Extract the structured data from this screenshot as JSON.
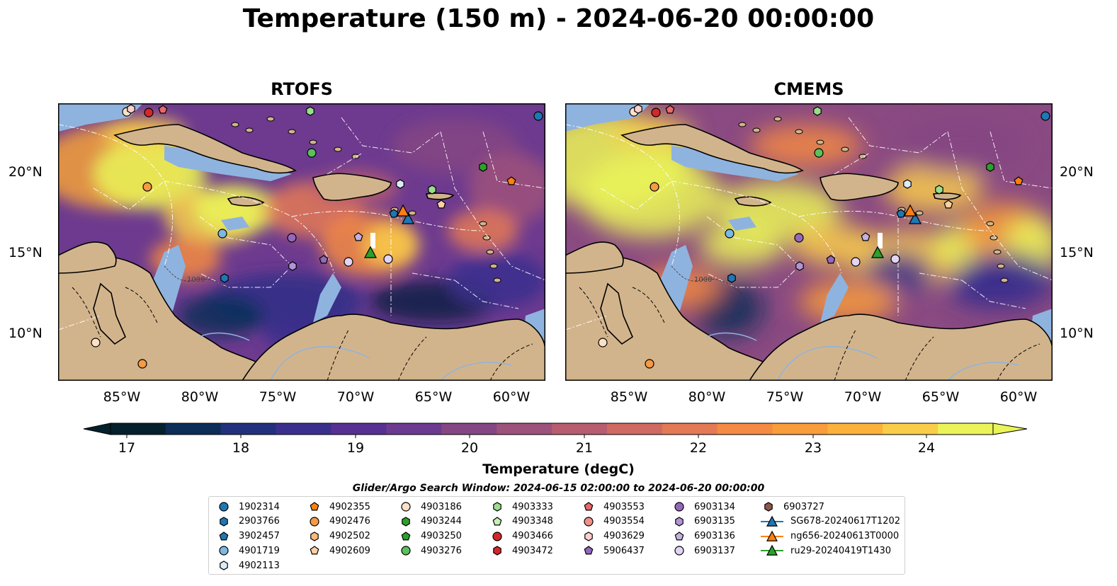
{
  "title": "Temperature (150 m) - 2024-06-20 00:00:00",
  "panels": [
    {
      "title": "RTOFS"
    },
    {
      "title": "CMEMS"
    }
  ],
  "map_axes": {
    "lon_ticks": [
      "85°W",
      "80°W",
      "75°W",
      "70°W",
      "65°W",
      "60°W"
    ],
    "lat_ticks": [
      "20°N",
      "15°N",
      "10°N"
    ],
    "contour_label": "1000"
  },
  "colorbar": {
    "label": "Temperature (degC)",
    "ticks": [
      "17",
      "18",
      "19",
      "20",
      "21",
      "22",
      "23",
      "24"
    ],
    "colors": [
      "#04202c",
      "#0c2d58",
      "#22317d",
      "#3b2f8e",
      "#563092",
      "#6c3a90",
      "#844783",
      "#9d527b",
      "#b75d6f",
      "#ce6a62",
      "#e47956",
      "#f58a43",
      "#f99c3a",
      "#fbb13c",
      "#f9cd4a",
      "#eaf458"
    ]
  },
  "legend": {
    "title": "Glider/Argo Search Window: 2024-06-15 02:00:00 to 2024-06-20 00:00:00",
    "items": [
      {
        "label": "1902314",
        "marker": "circle",
        "color": "#1f77b4"
      },
      {
        "label": "2903766",
        "marker": "hexagon",
        "color": "#1f77b4"
      },
      {
        "label": "3902457",
        "marker": "pentagon",
        "color": "#1f77b4"
      },
      {
        "label": "4901719",
        "marker": "circle",
        "color": "#7db8e0"
      },
      {
        "label": "4902113",
        "marker": "hexagon",
        "color": "#d9ecf8"
      },
      {
        "label": "4902355",
        "marker": "pentagon",
        "color": "#ff7f0e"
      },
      {
        "label": "4902476",
        "marker": "circle",
        "color": "#f59a45"
      },
      {
        "label": "4902502",
        "marker": "hexagon",
        "color": "#fdb97a"
      },
      {
        "label": "4902609",
        "marker": "pentagon",
        "color": "#fdd0a2"
      },
      {
        "label": "4903186",
        "marker": "circle",
        "color": "#fde0c5"
      },
      {
        "label": "4903244",
        "marker": "hexagon",
        "color": "#2ca02c"
      },
      {
        "label": "4903250",
        "marker": "pentagon",
        "color": "#2ca02c"
      },
      {
        "label": "4903276",
        "marker": "circle",
        "color": "#5cc05c"
      },
      {
        "label": "4903333",
        "marker": "hexagon",
        "color": "#98df8a"
      },
      {
        "label": "4903348",
        "marker": "pentagon",
        "color": "#c7f0b8"
      },
      {
        "label": "4903466",
        "marker": "circle",
        "color": "#d62728"
      },
      {
        "label": "4903472",
        "marker": "hexagon",
        "color": "#d62728"
      },
      {
        "label": "4903553",
        "marker": "pentagon",
        "color": "#e8696a"
      },
      {
        "label": "4903554",
        "marker": "circle",
        "color": "#f0908a"
      },
      {
        "label": "4903629",
        "marker": "hexagon",
        "color": "#fcd0cc"
      },
      {
        "label": "5906437",
        "marker": "pentagon",
        "color": "#9467bd"
      },
      {
        "label": "6903134",
        "marker": "circle",
        "color": "#9467bd"
      },
      {
        "label": "6903135",
        "marker": "hexagon",
        "color": "#b294d6"
      },
      {
        "label": "6903136",
        "marker": "pentagon",
        "color": "#c5b0e0"
      },
      {
        "label": "6903137",
        "marker": "circle",
        "color": "#e2d4f2"
      },
      {
        "label": "6903727",
        "marker": "hexagon",
        "color": "#8c564b"
      },
      {
        "label": "SG678-20240617T1202",
        "marker": "triangle-line",
        "color": "#1f77b4"
      },
      {
        "label": "ng656-20240613T0000",
        "marker": "triangle-line",
        "color": "#ff7f0e"
      },
      {
        "label": "ru29-20240419T1430",
        "marker": "triangle-line",
        "color": "#2ca02c"
      }
    ]
  },
  "colors": {
    "land": "#d2b48c",
    "shelf": "#8fb3df",
    "deep_ocean": "#04202c"
  }
}
